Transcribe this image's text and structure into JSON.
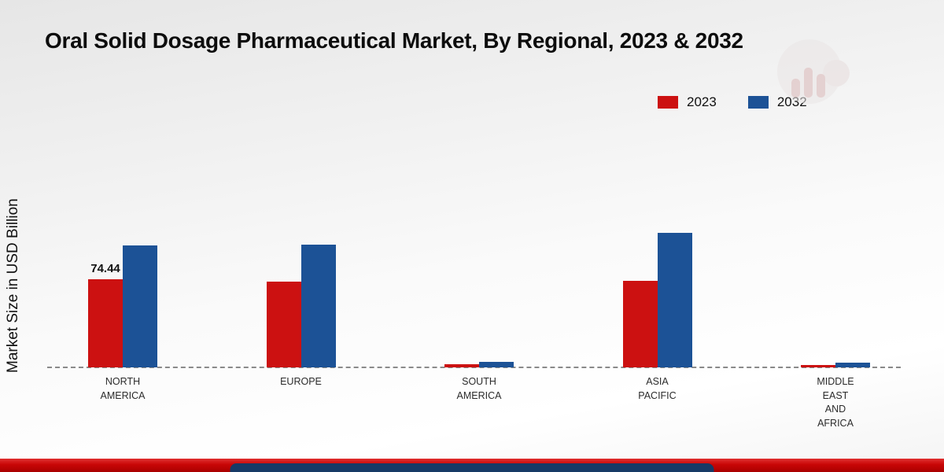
{
  "title": "Oral Solid Dosage Pharmaceutical Market, By Regional, 2023 & 2032",
  "y_axis_label": "Market Size in USD Billion",
  "legend": {
    "items": [
      {
        "label": "2023",
        "color": "#cc1111"
      },
      {
        "label": "2032",
        "color": "#1c5296"
      }
    ]
  },
  "colors": {
    "series_2023": "#cc1111",
    "series_2032": "#1c5296",
    "footer_band": "#c80606",
    "footer_pill": "#173a66",
    "baseline": "#8a8a8a"
  },
  "chart_data": {
    "type": "bar",
    "title": "Oral Solid Dosage Pharmaceutical Market, By Regional, 2023 & 2032",
    "xlabel": "",
    "ylabel": "Market Size in USD Billion",
    "grid": false,
    "legend_position": "top-right",
    "baseline_style": "dashed",
    "ylim": [
      0,
      125
    ],
    "categories": [
      "NORTH AMERICA",
      "EUROPE",
      "SOUTH AMERICA",
      "ASIA PACIFIC",
      "MIDDLE EAST AND AFRICA"
    ],
    "category_lines": [
      [
        "NORTH",
        "AMERICA"
      ],
      [
        "EUROPE"
      ],
      [
        "SOUTH",
        "AMERICA"
      ],
      [
        "ASIA",
        "PACIFIC"
      ],
      [
        "MIDDLE",
        "EAST",
        "AND",
        "AFRICA"
      ]
    ],
    "series": [
      {
        "name": "2023",
        "color": "#cc1111",
        "values": [
          74.44,
          72.4,
          2.7,
          73.1,
          2.0
        ],
        "labels": [
          "74.44",
          null,
          null,
          null,
          null
        ]
      },
      {
        "name": "2032",
        "color": "#1c5296",
        "values": [
          103.0,
          103.7,
          4.7,
          113.6,
          4.0
        ],
        "labels": [
          null,
          null,
          null,
          null,
          null
        ]
      }
    ]
  }
}
